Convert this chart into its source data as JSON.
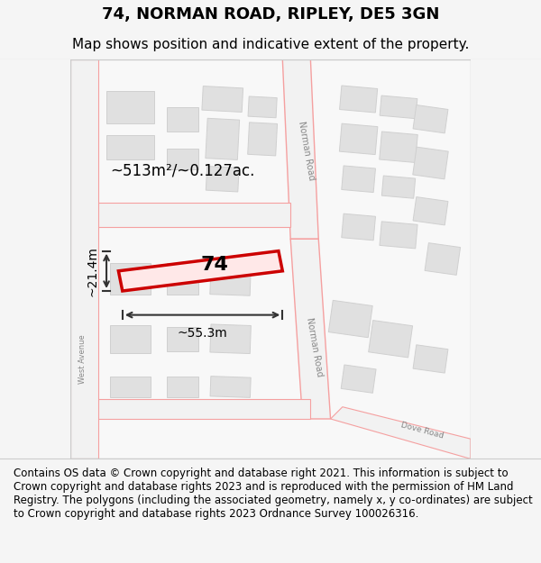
{
  "title": "74, NORMAN ROAD, RIPLEY, DE5 3GN",
  "subtitle": "Map shows position and indicative extent of the property.",
  "title_fontsize": 13,
  "subtitle_fontsize": 11,
  "footer_text": "Contains OS data © Crown copyright and database right 2021. This information is subject to Crown copyright and database rights 2023 and is reproduced with the permission of HM Land Registry. The polygons (including the associated geometry, namely x, y co-ordinates) are subject to Crown copyright and database rights 2023 Ordnance Survey 100026316.",
  "footer_fontsize": 8.5,
  "bg_color": "#f5f5f5",
  "map_bg": "#ffffff",
  "road_color": "#f5a0a0",
  "building_fill": "#e0e0e0",
  "building_edge": "#d0d0d0",
  "highlight_color": "#cc0000",
  "dim_color": "#333333",
  "road_label_color": "#888888",
  "property_label": "74",
  "area_label": "~513m²/~0.127ac.",
  "width_label": "~55.3m",
  "height_label": "~21.4m"
}
